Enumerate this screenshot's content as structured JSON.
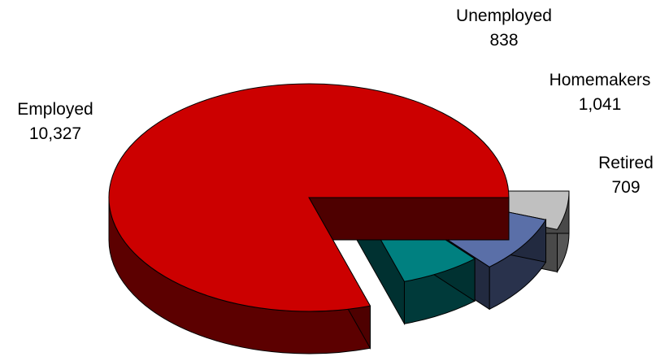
{
  "chart_data": {
    "type": "pie",
    "style": "3d-exploded",
    "title": "",
    "slices": [
      {
        "label": "Employed",
        "value": 10327,
        "value_label": "10,327",
        "color": "#cc0000"
      },
      {
        "label": "Unemployed",
        "value": 838,
        "value_label": "838",
        "color": "#008080"
      },
      {
        "label": "Homemakers",
        "value": 1041,
        "value_label": "1,041",
        "color": "#5a6fa8"
      },
      {
        "label": "Retired",
        "value": 709,
        "value_label": "709",
        "color": "#c0c0c0"
      }
    ],
    "legend": "none"
  }
}
